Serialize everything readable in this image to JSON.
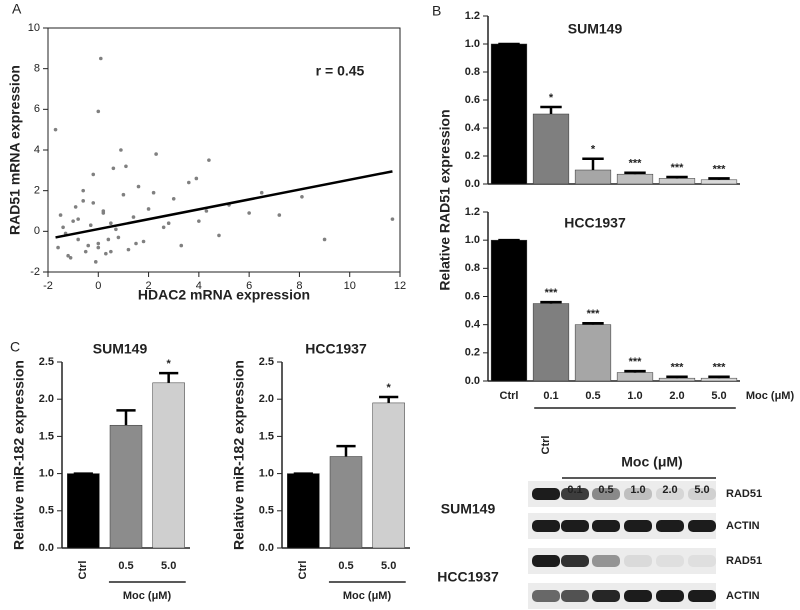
{
  "chart_data": [
    {
      "type": "scatter",
      "panel_label": "A",
      "x_label": "HDAC2 mRNA expression",
      "y_label": "RAD51 mRNA expression",
      "annotation": "r = 0.45",
      "color": "#808080",
      "x": [
        -1.6,
        -1.4,
        -1.2,
        -1.0,
        -0.8,
        -0.6,
        -0.5,
        -0.3,
        -0.2,
        0,
        0.1,
        0.2,
        0.3,
        0.5,
        0.6,
        0.8,
        1.0,
        1.2,
        1.4,
        1.6,
        1.8,
        2.0,
        2.3,
        2.6,
        3.0,
        3.3,
        3.6,
        4.0,
        4.4,
        4.8,
        5.2,
        6.0,
        6.5,
        7.2,
        8.1,
        9.0,
        11.7,
        -1.7,
        -1.3,
        -0.9,
        -0.4,
        0,
        0.4,
        0.9,
        -0.1,
        -0.6,
        0.2,
        1.5,
        -1.1,
        0.7,
        2.8,
        3.9,
        -0.2,
        0.5,
        -1.5,
        1.1,
        0.0,
        -0.8,
        2.2,
        4.3
      ],
      "values": [
        -0.8,
        0.2,
        -1.2,
        0.5,
        -0.4,
        1.5,
        -1.0,
        0.3,
        2.8,
        -0.6,
        8.5,
        1.0,
        -1.1,
        0.4,
        3.1,
        -0.3,
        1.8,
        -0.9,
        0.7,
        2.2,
        -0.5,
        1.1,
        3.8,
        0.2,
        1.6,
        -0.7,
        2.4,
        0.5,
        3.5,
        -0.2,
        1.3,
        0.9,
        1.9,
        0.8,
        1.7,
        -0.4,
        0.6,
        5.0,
        -0.1,
        1.2,
        -0.7,
        5.9,
        -0.4,
        4.0,
        -1.5,
        2.0,
        0.9,
        -0.6,
        -1.3,
        0.1,
        0.4,
        2.6,
        1.4,
        -1.0,
        0.8,
        3.2,
        -0.8,
        0.6,
        1.9,
        1.0
      ],
      "fit_line": {
        "x": [
          -1.7,
          11.7
        ],
        "y": [
          -0.3,
          2.95
        ]
      },
      "xlim": [
        -2,
        12
      ],
      "xticks": [
        -2,
        0,
        2,
        4,
        6,
        8,
        10,
        12
      ],
      "ylim": [
        -2,
        10
      ],
      "yticks": [
        -2,
        0,
        2,
        4,
        6,
        8,
        10
      ]
    },
    {
      "type": "bar",
      "panel_label": "B",
      "title": "SUM149",
      "y_label": "Relative RAD51 expression",
      "categories": [
        null,
        null,
        null,
        null,
        null,
        null
      ],
      "values": [
        1.0,
        0.5,
        0.1,
        0.07,
        0.04,
        0.03
      ],
      "errors": [
        0,
        0.05,
        0.08,
        0.01,
        0.01,
        0.01
      ],
      "annotations": [
        null,
        "*",
        "*",
        "***",
        "***",
        "***"
      ],
      "colors": [
        "#000000",
        "#7f7f7f",
        "#a6a6a6",
        "#bfbfbf",
        "#cccccc",
        "#d9d9d9"
      ],
      "ylim": [
        0,
        1.2
      ],
      "yticks": [
        {
          "value": 0,
          "label": "0.0"
        },
        0.2,
        0.4,
        0.6,
        0.8,
        {
          "value": 1,
          "label": "1.0"
        },
        1.2
      ]
    },
    {
      "type": "bar",
      "title": "HCC1937",
      "x_label": "Moc (μM)",
      "categories": [
        "Ctrl",
        "0.1",
        "0.5",
        "1.0",
        "2.0",
        "5.0"
      ],
      "values": [
        1.0,
        0.55,
        0.4,
        0.06,
        0.02,
        0.02
      ],
      "errors": [
        0,
        0.01,
        0.01,
        0.01,
        0.01,
        0.01
      ],
      "annotations": [
        null,
        "***",
        "***",
        "***",
        "***",
        "***"
      ],
      "colors": [
        "#000000",
        "#7f7f7f",
        "#a6a6a6",
        "#bfbfbf",
        "#cccccc",
        "#d9d9d9"
      ],
      "ylim": [
        0,
        1.2
      ],
      "yticks": [
        {
          "value": 0,
          "label": "0.0"
        },
        0.2,
        0.4,
        0.6,
        0.8,
        {
          "value": 1,
          "label": "1.0"
        },
        1.2
      ]
    },
    {
      "type": "bar",
      "panel_label": "C",
      "title": "SUM149",
      "y_label": "Relative miR-182 expression",
      "x_label": "Moc (μM)",
      "categories": [
        "Ctrl",
        "0.5",
        "5.0"
      ],
      "values": [
        1.0,
        1.65,
        2.22
      ],
      "errors": [
        0,
        0.2,
        0.13
      ],
      "annotations": [
        null,
        null,
        "*"
      ],
      "colors": [
        "#000000",
        "#8c8c8c",
        "#cfcfcf"
      ],
      "ylim": [
        0,
        2.5
      ],
      "yticks": [
        {
          "value": 0,
          "label": "0.0"
        },
        0.5,
        {
          "value": 1,
          "label": "1.0"
        },
        1.5,
        {
          "value": 2,
          "label": "2.0"
        },
        2.5
      ]
    },
    {
      "type": "bar",
      "title": "HCC1937",
      "y_label": "Relative miR-182 expression",
      "x_label": "Moc (μM)",
      "categories": [
        "Ctrl",
        "0.5",
        "5.0"
      ],
      "values": [
        1.0,
        1.23,
        1.95
      ],
      "errors": [
        0,
        0.14,
        0.08
      ],
      "annotations": [
        null,
        null,
        "*"
      ],
      "colors": [
        "#000000",
        "#8c8c8c",
        "#cfcfcf"
      ],
      "ylim": [
        0,
        2.5
      ],
      "yticks": [
        {
          "value": 0,
          "label": "0.0"
        },
        0.5,
        {
          "value": 1,
          "label": "1.0"
        },
        1.5,
        {
          "value": 2,
          "label": "2.0"
        },
        2.5
      ]
    }
  ],
  "blot": {
    "title": "Moc (μM)",
    "control": "Ctrl",
    "doses": [
      "0.1",
      "0.5",
      "1.0",
      "2.0",
      "5.0"
    ],
    "cell_lines": [
      {
        "name": "SUM149",
        "rows": [
          "RAD51",
          "ACTIN"
        ]
      },
      {
        "name": "HCC1937",
        "rows": [
          "RAD51",
          "ACTIN"
        ]
      }
    ]
  }
}
